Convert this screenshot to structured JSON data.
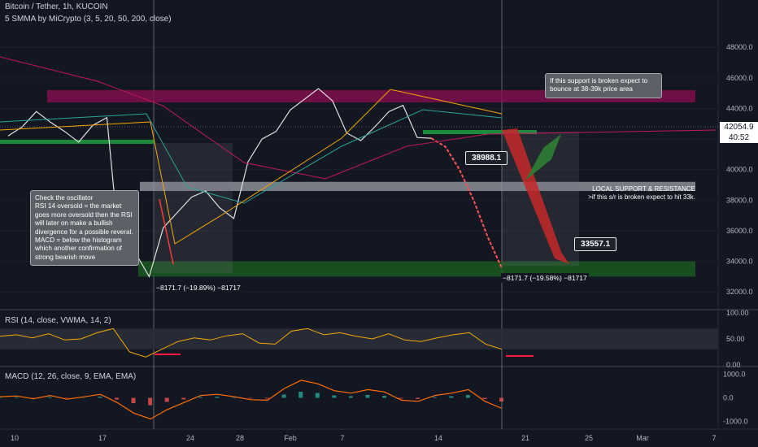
{
  "header": {
    "title": "Bitcoin / Tether, 1h, KUCOIN",
    "indicator": "5 SMMA by MiCrypto (3, 5, 20, 50, 200, close)"
  },
  "last_price": {
    "value": "42054.9",
    "countdown": "40:52"
  },
  "callouts": {
    "left": "Check the oscillator\nRSI 14 oversold = the market goes more oversold then the RSI will later on make a bullish divergence for a possible reveral.\nMACD = below the histogram which another confirmation of strong bearish move",
    "right": "If this support is broken expect to bounce at 38-39k  price area"
  },
  "labels": {
    "level_38988": "38988.1",
    "level_33557": "33557.1"
  },
  "note_local": "LOCAL SUPPORT & RESISTANCE\n>if this s/r is broken expect to hit 33k.",
  "measures": {
    "left": "−8171.7 (−19.89%) −81717",
    "right": "−8171.7 (−19.58%) −81717"
  },
  "panes": {
    "rsi_title": "RSI (14, close, VWMA, 14, 2)",
    "macd_title": "MACD (12, 26, close, 9, EMA, EMA)"
  },
  "chart_data": [
    {
      "type": "line",
      "title": "Bitcoin / Tether, 1h, KUCOIN",
      "x_ticks": [
        "10",
        "17",
        "24",
        "28",
        "Feb",
        "7",
        "14",
        "21",
        "25",
        "Mar",
        "7"
      ],
      "y_ticks": [
        32000,
        34000,
        36000,
        38000,
        40000,
        42000,
        44000,
        46000,
        48000
      ],
      "ylim": [
        31000,
        49500
      ],
      "series": [
        {
          "name": "price",
          "x": [
            0,
            4,
            8,
            12,
            16,
            20,
            24,
            28,
            30,
            32,
            36,
            40,
            44,
            48,
            52,
            56,
            60,
            64,
            68,
            72,
            76,
            80,
            84,
            88,
            92,
            96,
            100,
            104,
            108,
            112,
            116,
            120,
            124,
            128,
            132,
            136,
            140
          ],
          "values": [
            42200,
            42800,
            43800,
            43100,
            42500,
            41800,
            42900,
            43400,
            38600,
            35500,
            34600,
            33000,
            36200,
            37200,
            38200,
            38600,
            37500,
            36800,
            40500,
            42000,
            42500,
            43900,
            44600,
            45300,
            44500,
            42400,
            41900,
            42800,
            43800,
            44200,
            42100,
            42054,
            41500,
            40000,
            38000,
            35600,
            33557
          ]
        }
      ],
      "moving_averages": {
        "sma200_color": "#c2185b",
        "sma50_color": "#26a69a",
        "sma20_color": "#f7a600"
      },
      "zones": [
        {
          "name": "resistance",
          "from": 44400,
          "to": 45200,
          "color": "#880e4f"
        },
        {
          "name": "local support/resistance",
          "from": 38600,
          "to": 39200,
          "color": "#9598a1"
        },
        {
          "name": "support",
          "from": 33000,
          "to": 34000,
          "color": "#1b5e20"
        }
      ]
    },
    {
      "type": "line",
      "title": "RSI (14, close, VWMA, 14, 2)",
      "y_ticks": [
        0,
        50,
        100
      ],
      "ylim": [
        -5,
        105
      ],
      "series": [
        {
          "name": "RSI",
          "values": [
            55,
            58,
            52,
            60,
            48,
            50,
            62,
            70,
            25,
            15,
            30,
            45,
            52,
            48,
            56,
            60,
            42,
            40,
            65,
            70,
            58,
            62,
            55,
            50,
            60,
            48,
            45,
            52,
            58,
            62,
            40,
            30
          ]
        }
      ]
    },
    {
      "type": "line",
      "title": "MACD (12, 26, close, 9, EMA, EMA)",
      "y_ticks": [
        -1000,
        0,
        1000
      ],
      "ylim": [
        -1300,
        1300
      ],
      "series": [
        {
          "name": "MACD",
          "values": [
            50,
            80,
            -40,
            100,
            -60,
            40,
            150,
            -200,
            -650,
            -900,
            -500,
            -200,
            100,
            150,
            50,
            -80,
            -100,
            400,
            750,
            600,
            300,
            200,
            350,
            250,
            -100,
            -150,
            100,
            200,
            350,
            -150,
            -450
          ]
        }
      ]
    }
  ]
}
